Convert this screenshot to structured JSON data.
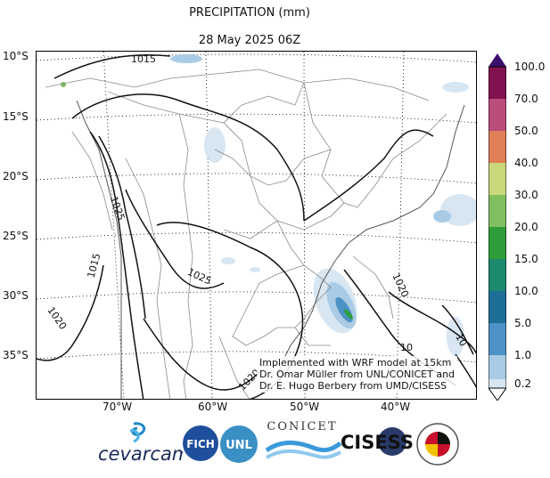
{
  "title": "PRECIPITATION (mm)",
  "subtitle": "28 May 2025 06Z",
  "lat_labels": [
    "10°S",
    "15°S",
    "20°S",
    "25°S",
    "30°S",
    "35°S"
  ],
  "lon_labels": [
    "70°W",
    "60°W",
    "50°W",
    "40°W"
  ],
  "isobar_labels": [
    "1015",
    "1025",
    "1015",
    "1025",
    "1020",
    "1020",
    "1020",
    "10",
    "10"
  ],
  "colorbar": {
    "labels": [
      "100.0",
      "70.0",
      "50.0",
      "40.0",
      "30.0",
      "20.0",
      "15.0",
      "10.0",
      "5.0",
      "1.0",
      "0.2"
    ],
    "colors": [
      "#80124f",
      "#a3134f",
      "#e07e55",
      "#c8d87a",
      "#7fbf5f",
      "#2e9c3a",
      "#1c8a6e",
      "#1e6f97",
      "#4d92c6",
      "#a9cbe6",
      "#d8e6f2",
      "#ffffff"
    ]
  },
  "note": {
    "line1": "Implemented with WRF model at 15km",
    "line2": "Dr. Omar Müller from UNL/CONICET and",
    "line3": "Dr. E. Hugo Berbery from UMD/CISESS"
  },
  "logos": {
    "cevarcam": "cevarcam",
    "fich": "FICH",
    "unl": "UNL",
    "conicet": "CONICET",
    "cisess": "CISESS"
  }
}
